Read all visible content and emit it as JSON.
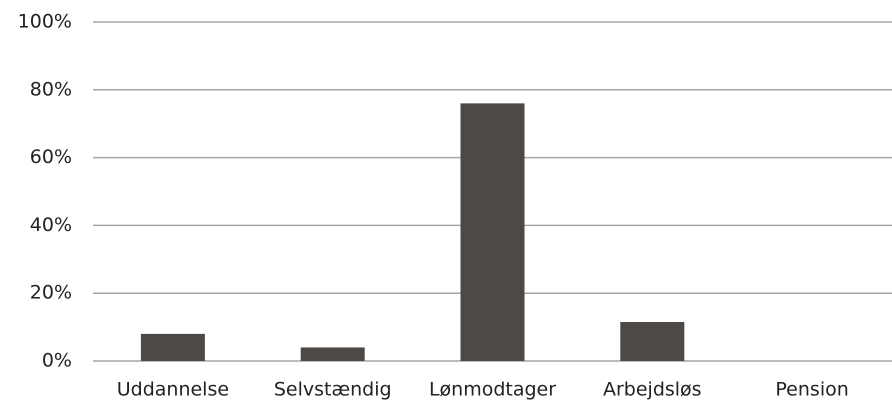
{
  "chart_data": {
    "type": "bar",
    "categories": [
      "Uddannelse",
      "Selvstændig",
      "Lønmodtager",
      "Arbejdsløs",
      "Pension"
    ],
    "values": [
      8,
      4,
      76,
      11.5,
      0
    ],
    "color": "#4d4946",
    "ylim": [
      0,
      100
    ],
    "yticks": [
      {
        "value": 0,
        "label": "0%"
      },
      {
        "value": 20,
        "label": "20%"
      },
      {
        "value": 40,
        "label": "40%"
      },
      {
        "value": 60,
        "label": "60%"
      },
      {
        "value": 80,
        "label": "80%"
      },
      {
        "value": 100,
        "label": "100%"
      }
    ],
    "grid": true
  }
}
